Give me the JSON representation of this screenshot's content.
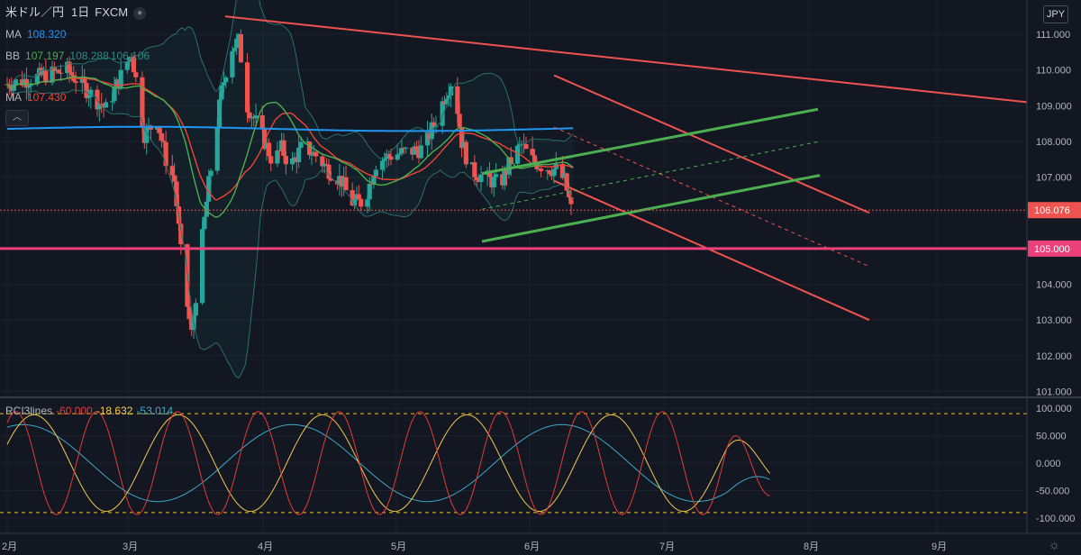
{
  "header": {
    "symbol": "米ドル／円",
    "interval": "1日",
    "source": "FXCM",
    "currency": "JPY"
  },
  "legend": {
    "ma_long_label": "MA",
    "ma_long_value": "108.320",
    "bb_label": "BB",
    "bb_mid": "107.197",
    "bb_upper": "108.288",
    "bb_lower": "106.106",
    "ma_short_label": "MA",
    "ma_short_value": "107.430"
  },
  "rci": {
    "label": "RCI3lines",
    "short": "-60.000",
    "mid": "-18.632",
    "long": "-53.014"
  },
  "colors": {
    "background": "#131722",
    "up": "#26a69a",
    "down": "#ef5350",
    "ma_long": "#2196f3",
    "bb_mid": "#4caf50",
    "bb_band": "#2a6f6b",
    "ma_short": "#f44336",
    "resistance": "#ec407a",
    "rci_short": "#e53935",
    "rci_mid": "#f2c94c",
    "rci_long": "#3fa7c4"
  },
  "chart_data": [
    {
      "type": "candlestick",
      "title": "米ドル／円 1日 FXCM",
      "price_axis_ticks": [
        "111.000",
        "110.000",
        "109.000",
        "108.000",
        "107.000",
        "106.000",
        "105.000",
        "104.000",
        "103.000",
        "102.000",
        "101.000"
      ],
      "ylim": [
        101.0,
        111.4
      ],
      "time_axis_ticks": [
        "2月",
        "3月",
        "4月",
        "5月",
        "6月",
        "7月",
        "8月",
        "9月"
      ],
      "last_price": "106.076",
      "horizontal_level": "105.000",
      "approx_path": [
        {
          "t": "2月",
          "close": 109.6
        },
        {
          "t": "2月下旬",
          "close": 111.6
        },
        {
          "t": "3月上旬",
          "close": 107.5
        },
        {
          "t": "3月中旬",
          "close": 102.4
        },
        {
          "t": "3月下旬",
          "close": 110.9
        },
        {
          "t": "4月",
          "close": 107.9
        },
        {
          "t": "4月中旬",
          "close": 107.5
        },
        {
          "t": "5月",
          "close": 107.1
        },
        {
          "t": "5月上旬",
          "close": 106.2
        },
        {
          "t": "6月",
          "close": 108.5
        },
        {
          "t": "6月上旬",
          "close": 109.8
        },
        {
          "t": "6月中旬",
          "close": 107.2
        },
        {
          "t": "7月",
          "close": 107.7
        },
        {
          "t": "7月下旬",
          "close": 106.1
        }
      ]
    },
    {
      "type": "line",
      "title": "RCI3lines",
      "axis_ticks": [
        "100.000",
        "50.000",
        "0.000",
        "-50.000",
        "-100.000"
      ],
      "ylim": [
        -100,
        100
      ],
      "series": [
        {
          "name": "-60.000",
          "last": -60.0
        },
        {
          "name": "-18.632",
          "last": -18.632
        },
        {
          "name": "-53.014",
          "last": -53.014
        }
      ]
    }
  ]
}
